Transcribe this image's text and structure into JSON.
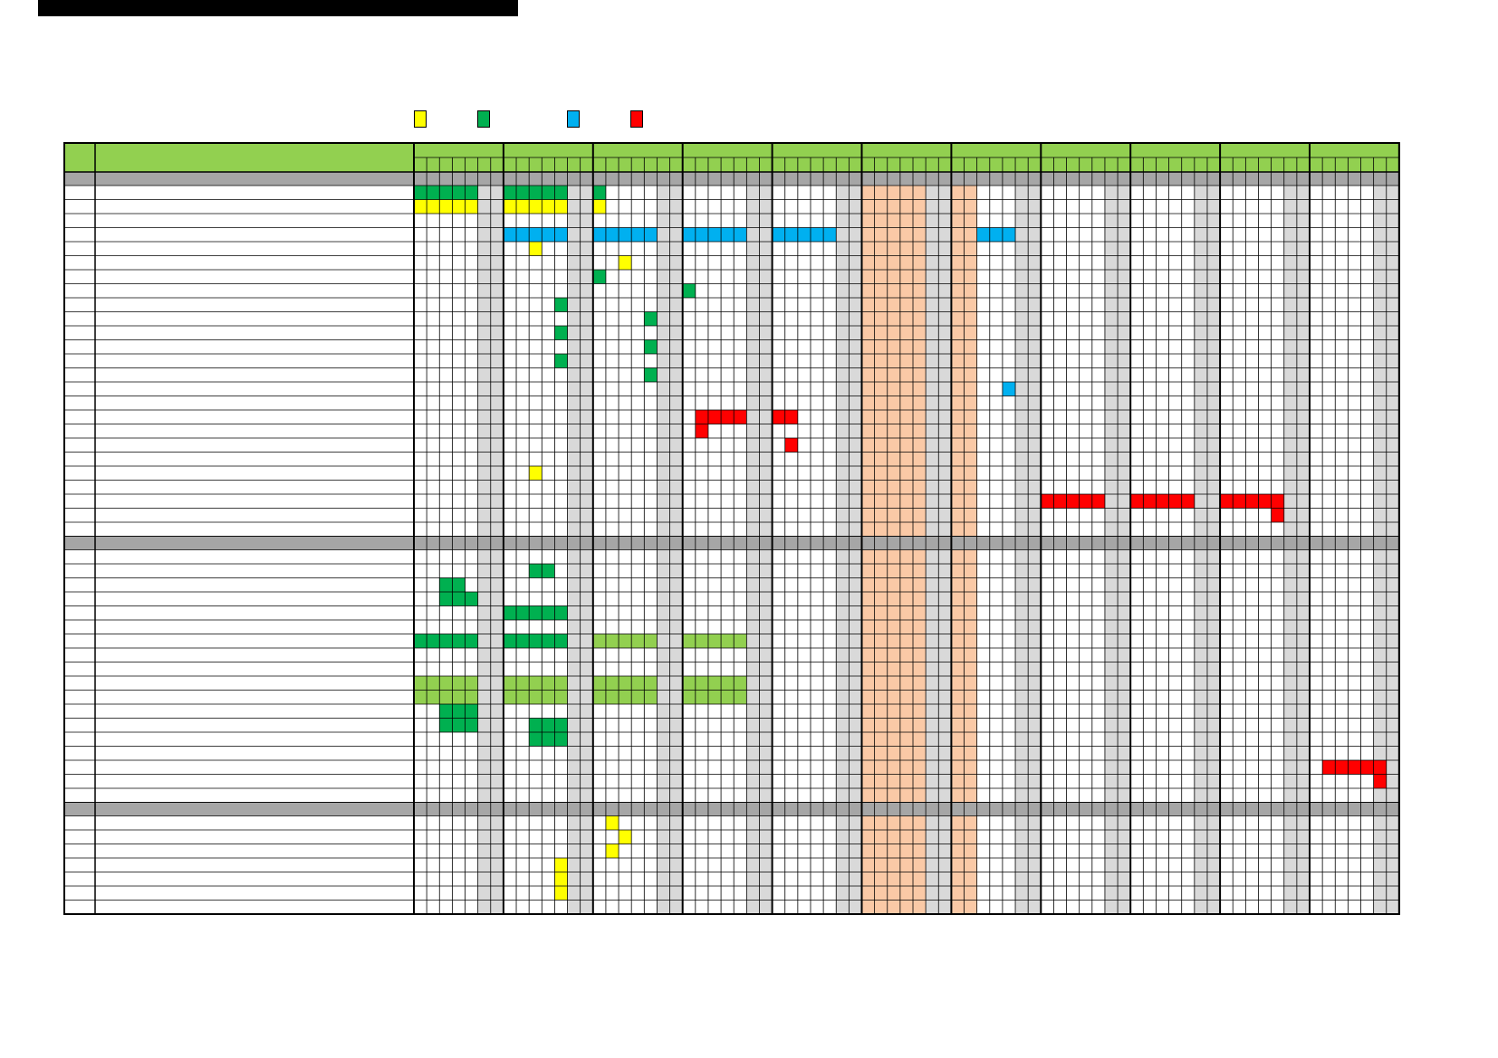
{
  "palette": {
    "yellow": "#FFFF00",
    "green": "#00B050",
    "blue": "#00B0F0",
    "red": "#FF0000",
    "light_green": "#92D050",
    "peach": "#FAC9A6",
    "section_gray": "#A6A6A6",
    "weekend_gray": "#D9D9D9",
    "title_bar": "#000000"
  },
  "legend": [
    {
      "icon": "yellow-swatch",
      "color": "yellow"
    },
    {
      "icon": "green-swatch",
      "color": "green"
    },
    {
      "icon": "blue-swatch",
      "color": "blue"
    },
    {
      "icon": "red-swatch",
      "color": "red"
    }
  ],
  "grid": {
    "months": 11,
    "days_per_month": 7,
    "weekend_days": [
      5,
      6
    ],
    "peach_days": [
      0,
      1,
      2,
      3,
      4
    ],
    "peach_month_extra": {
      "6": [
        0,
        1
      ]
    },
    "sections": [
      {
        "rows": 25
      },
      {
        "rows": 18
      },
      {
        "rows": 7
      }
    ]
  },
  "fills": [
    {
      "section": 0,
      "row": 0,
      "color": "green",
      "runs": [
        [
          0,
          0,
          5
        ],
        [
          1,
          0,
          5
        ],
        [
          2,
          0,
          1
        ]
      ]
    },
    {
      "section": 0,
      "row": 1,
      "color": "yellow",
      "runs": [
        [
          0,
          0,
          5
        ],
        [
          1,
          0,
          5
        ],
        [
          2,
          0,
          1
        ]
      ]
    },
    {
      "section": 0,
      "row": 3,
      "color": "blue",
      "runs": [
        [
          1,
          0,
          5
        ],
        [
          2,
          0,
          5
        ],
        [
          3,
          0,
          5
        ],
        [
          4,
          0,
          5
        ],
        [
          6,
          2,
          3
        ]
      ]
    },
    {
      "section": 0,
      "row": 4,
      "color": "yellow",
      "runs": [
        [
          1,
          2,
          1
        ]
      ]
    },
    {
      "section": 0,
      "row": 5,
      "color": "yellow",
      "runs": [
        [
          2,
          2,
          1
        ]
      ]
    },
    {
      "section": 0,
      "row": 6,
      "color": "green",
      "runs": [
        [
          2,
          0,
          1
        ]
      ]
    },
    {
      "section": 0,
      "row": 7,
      "color": "green",
      "runs": [
        [
          3,
          0,
          1
        ]
      ]
    },
    {
      "section": 0,
      "row": 8,
      "color": "green",
      "runs": [
        [
          1,
          4,
          1
        ]
      ]
    },
    {
      "section": 0,
      "row": 9,
      "color": "green",
      "runs": [
        [
          2,
          4,
          1
        ]
      ]
    },
    {
      "section": 0,
      "row": 10,
      "color": "green",
      "runs": [
        [
          1,
          4,
          1
        ]
      ]
    },
    {
      "section": 0,
      "row": 11,
      "color": "green",
      "runs": [
        [
          2,
          4,
          1
        ]
      ]
    },
    {
      "section": 0,
      "row": 12,
      "color": "green",
      "runs": [
        [
          1,
          4,
          1
        ]
      ]
    },
    {
      "section": 0,
      "row": 13,
      "color": "green",
      "runs": [
        [
          2,
          4,
          1
        ]
      ]
    },
    {
      "section": 0,
      "row": 14,
      "color": "blue",
      "runs": [
        [
          6,
          4,
          1
        ]
      ]
    },
    {
      "section": 0,
      "row": 16,
      "color": "red",
      "runs": [
        [
          3,
          1,
          4
        ],
        [
          4,
          0,
          2
        ]
      ]
    },
    {
      "section": 0,
      "row": 17,
      "color": "red",
      "runs": [
        [
          3,
          1,
          1
        ]
      ]
    },
    {
      "section": 0,
      "row": 18,
      "color": "red",
      "runs": [
        [
          4,
          1,
          1
        ]
      ]
    },
    {
      "section": 0,
      "row": 20,
      "color": "yellow",
      "runs": [
        [
          1,
          2,
          1
        ]
      ]
    },
    {
      "section": 0,
      "row": 22,
      "color": "red",
      "runs": [
        [
          7,
          0,
          5
        ],
        [
          8,
          0,
          5
        ],
        [
          9,
          0,
          5
        ]
      ]
    },
    {
      "section": 0,
      "row": 23,
      "color": "red",
      "runs": [
        [
          9,
          4,
          1
        ]
      ]
    },
    {
      "section": 1,
      "row": 1,
      "color": "green",
      "runs": [
        [
          1,
          2,
          2
        ]
      ]
    },
    {
      "section": 1,
      "row": 2,
      "color": "green",
      "runs": [
        [
          0,
          2,
          2
        ]
      ]
    },
    {
      "section": 1,
      "row": 3,
      "color": "green",
      "runs": [
        [
          0,
          2,
          3
        ]
      ]
    },
    {
      "section": 1,
      "row": 4,
      "color": "green",
      "runs": [
        [
          1,
          0,
          5
        ]
      ]
    },
    {
      "section": 1,
      "row": 6,
      "color": "green",
      "runs": [
        [
          0,
          0,
          5
        ],
        [
          1,
          0,
          5
        ]
      ]
    },
    {
      "section": 1,
      "row": 6,
      "color": "light_green",
      "runs": [
        [
          2,
          0,
          5
        ],
        [
          3,
          0,
          5
        ]
      ]
    },
    {
      "section": 1,
      "row": 9,
      "color": "light_green",
      "runs": [
        [
          0,
          0,
          5
        ],
        [
          1,
          0,
          5
        ],
        [
          2,
          0,
          5
        ],
        [
          3,
          0,
          5
        ]
      ]
    },
    {
      "section": 1,
      "row": 10,
      "color": "light_green",
      "runs": [
        [
          0,
          0,
          5
        ],
        [
          1,
          0,
          5
        ],
        [
          2,
          0,
          5
        ],
        [
          3,
          0,
          5
        ]
      ]
    },
    {
      "section": 1,
      "row": 11,
      "color": "green",
      "runs": [
        [
          0,
          2,
          3
        ]
      ]
    },
    {
      "section": 1,
      "row": 12,
      "color": "green",
      "runs": [
        [
          0,
          2,
          3
        ],
        [
          1,
          2,
          3
        ]
      ]
    },
    {
      "section": 1,
      "row": 13,
      "color": "green",
      "runs": [
        [
          1,
          2,
          3
        ]
      ]
    },
    {
      "section": 1,
      "row": 15,
      "color": "red",
      "runs": [
        [
          10,
          1,
          5
        ]
      ]
    },
    {
      "section": 1,
      "row": 16,
      "color": "red",
      "runs": [
        [
          10,
          5,
          1
        ]
      ]
    },
    {
      "section": 2,
      "row": 0,
      "color": "yellow",
      "runs": [
        [
          2,
          1,
          1
        ]
      ]
    },
    {
      "section": 2,
      "row": 1,
      "color": "yellow",
      "runs": [
        [
          2,
          2,
          1
        ]
      ]
    },
    {
      "section": 2,
      "row": 2,
      "color": "yellow",
      "runs": [
        [
          2,
          1,
          1
        ]
      ]
    },
    {
      "section": 2,
      "row": 3,
      "color": "yellow",
      "runs": [
        [
          1,
          4,
          1
        ]
      ]
    },
    {
      "section": 2,
      "row": 4,
      "color": "yellow",
      "runs": [
        [
          1,
          4,
          1
        ]
      ]
    },
    {
      "section": 2,
      "row": 5,
      "color": "yellow",
      "runs": [
        [
          1,
          4,
          1
        ]
      ]
    }
  ]
}
